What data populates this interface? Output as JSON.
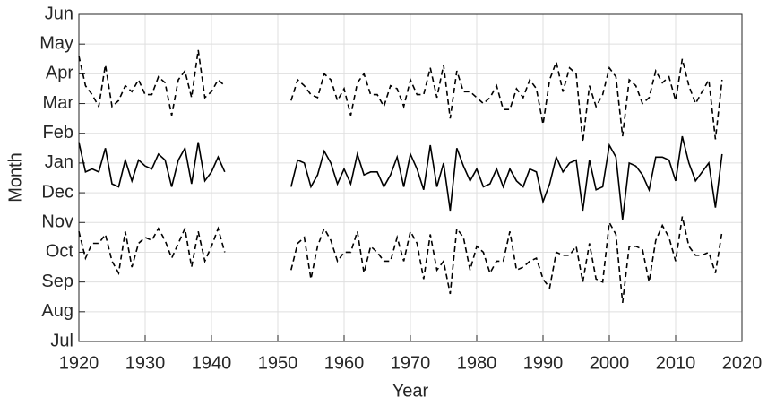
{
  "chart_data": {
    "type": "line",
    "xlabel": "Year",
    "ylabel": "Month",
    "x": [
      1920,
      1921,
      1922,
      1923,
      1924,
      1925,
      1926,
      1927,
      1928,
      1929,
      1930,
      1931,
      1932,
      1933,
      1934,
      1935,
      1936,
      1937,
      1938,
      1939,
      1940,
      1941,
      1942,
      1943,
      1944,
      1945,
      1946,
      1947,
      1948,
      1949,
      1950,
      1951,
      1952,
      1953,
      1954,
      1955,
      1956,
      1957,
      1958,
      1959,
      1960,
      1961,
      1962,
      1963,
      1964,
      1965,
      1966,
      1967,
      1968,
      1969,
      1970,
      1971,
      1972,
      1973,
      1974,
      1975,
      1976,
      1977,
      1978,
      1979,
      1980,
      1981,
      1982,
      1983,
      1984,
      1985,
      1986,
      1987,
      1988,
      1989,
      1990,
      1991,
      1992,
      1993,
      1994,
      1995,
      1996,
      1997,
      1998,
      1999,
      2000,
      2001,
      2002,
      2003,
      2004,
      2005,
      2006,
      2007,
      2008,
      2009,
      2010,
      2011,
      2012,
      2013,
      2014,
      2015,
      2016,
      2017
    ],
    "series": [
      {
        "color": "#000000",
        "dash": true,
        "values": [
          9.6,
          8.6,
          8.3,
          7.9,
          9.3,
          7.9,
          8.1,
          8.6,
          8.4,
          8.8,
          8.3,
          8.3,
          8.9,
          8.7,
          7.6,
          8.8,
          9.1,
          8.2,
          9.8,
          8.2,
          8.4,
          8.8,
          8.6,
          null,
          null,
          null,
          null,
          null,
          null,
          null,
          null,
          null,
          8.1,
          8.8,
          8.6,
          8.3,
          8.2,
          9.0,
          8.8,
          8.1,
          8.5,
          7.6,
          8.7,
          9.0,
          8.3,
          8.3,
          7.9,
          8.6,
          8.5,
          7.9,
          8.8,
          8.3,
          8.3,
          9.2,
          8.2,
          9.3,
          7.5,
          9.1,
          8.4,
          8.4,
          8.2,
          8.0,
          8.2,
          8.6,
          7.8,
          7.8,
          8.5,
          8.2,
          8.8,
          8.5,
          7.3,
          8.8,
          9.4,
          8.4,
          9.2,
          9.0,
          6.7,
          8.6,
          7.9,
          8.3,
          9.2,
          8.9,
          6.9,
          8.8,
          8.6,
          8.0,
          8.2,
          9.1,
          8.7,
          8.9,
          8.1,
          9.5,
          8.6,
          8.0,
          8.4,
          8.8,
          6.8,
          8.8
        ]
      },
      {
        "color": "#000000",
        "dash": false,
        "values": [
          6.7,
          5.7,
          5.8,
          5.7,
          6.5,
          5.3,
          5.2,
          6.1,
          5.4,
          6.1,
          5.9,
          5.8,
          6.3,
          6.1,
          5.2,
          6.1,
          6.5,
          5.3,
          6.7,
          5.4,
          5.7,
          6.2,
          5.7,
          null,
          null,
          null,
          null,
          null,
          null,
          null,
          null,
          null,
          5.2,
          6.1,
          6.0,
          5.2,
          5.6,
          6.4,
          6.0,
          5.3,
          5.8,
          5.3,
          6.3,
          5.6,
          5.7,
          5.7,
          5.2,
          5.6,
          6.2,
          5.2,
          6.3,
          5.8,
          5.1,
          6.6,
          5.2,
          6.0,
          4.4,
          6.5,
          5.9,
          5.4,
          5.8,
          5.2,
          5.3,
          5.8,
          5.2,
          5.8,
          5.4,
          5.2,
          5.8,
          5.7,
          4.7,
          5.3,
          6.2,
          5.7,
          6.0,
          6.1,
          4.4,
          6.1,
          5.1,
          5.2,
          6.6,
          6.2,
          4.1,
          6.0,
          5.9,
          5.6,
          5.1,
          6.2,
          6.2,
          6.1,
          5.4,
          6.9,
          6.0,
          5.4,
          5.7,
          6.0,
          4.5,
          6.3
        ]
      },
      {
        "color": "#000000",
        "dash": true,
        "values": [
          3.7,
          2.8,
          3.3,
          3.3,
          3.6,
          2.7,
          2.3,
          3.7,
          2.5,
          3.3,
          3.5,
          3.4,
          3.8,
          3.4,
          2.8,
          3.3,
          3.8,
          2.5,
          3.7,
          2.7,
          3.2,
          3.8,
          3.0,
          null,
          null,
          null,
          null,
          null,
          null,
          null,
          null,
          null,
          2.4,
          3.3,
          3.5,
          2.1,
          3.2,
          3.8,
          3.4,
          2.7,
          3.0,
          3.0,
          3.7,
          2.3,
          3.2,
          3.0,
          2.7,
          2.7,
          3.5,
          2.7,
          3.7,
          3.3,
          2.1,
          3.6,
          2.4,
          2.7,
          1.6,
          3.8,
          3.5,
          2.4,
          3.2,
          3.0,
          2.3,
          2.7,
          2.7,
          3.7,
          2.4,
          2.5,
          2.7,
          2.8,
          2.1,
          1.8,
          3.0,
          2.9,
          2.9,
          3.2,
          2.0,
          3.3,
          2.1,
          2.0,
          4.0,
          3.6,
          1.3,
          3.2,
          3.2,
          3.1,
          2.0,
          3.4,
          3.9,
          3.5,
          2.7,
          4.2,
          3.2,
          2.9,
          2.9,
          3.0,
          2.3,
          3.7
        ]
      }
    ],
    "xlim": [
      1920,
      2020
    ],
    "xticks": [
      1920,
      1930,
      1940,
      1950,
      1960,
      1970,
      1980,
      1990,
      2000,
      2010,
      2020
    ],
    "ylim": [
      0,
      11
    ],
    "yticks": [
      {
        "value": 0,
        "label": "Jul"
      },
      {
        "value": 1,
        "label": "Aug"
      },
      {
        "value": 2,
        "label": "Sep"
      },
      {
        "value": 3,
        "label": "Oct"
      },
      {
        "value": 4,
        "label": "Nov"
      },
      {
        "value": 5,
        "label": "Dec"
      },
      {
        "value": 6,
        "label": "Jan"
      },
      {
        "value": 7,
        "label": "Feb"
      },
      {
        "value": 8,
        "label": "Mar"
      },
      {
        "value": 9,
        "label": "Apr"
      },
      {
        "value": 10,
        "label": "May"
      },
      {
        "value": 11,
        "label": "Jun"
      }
    ],
    "grid": true
  }
}
